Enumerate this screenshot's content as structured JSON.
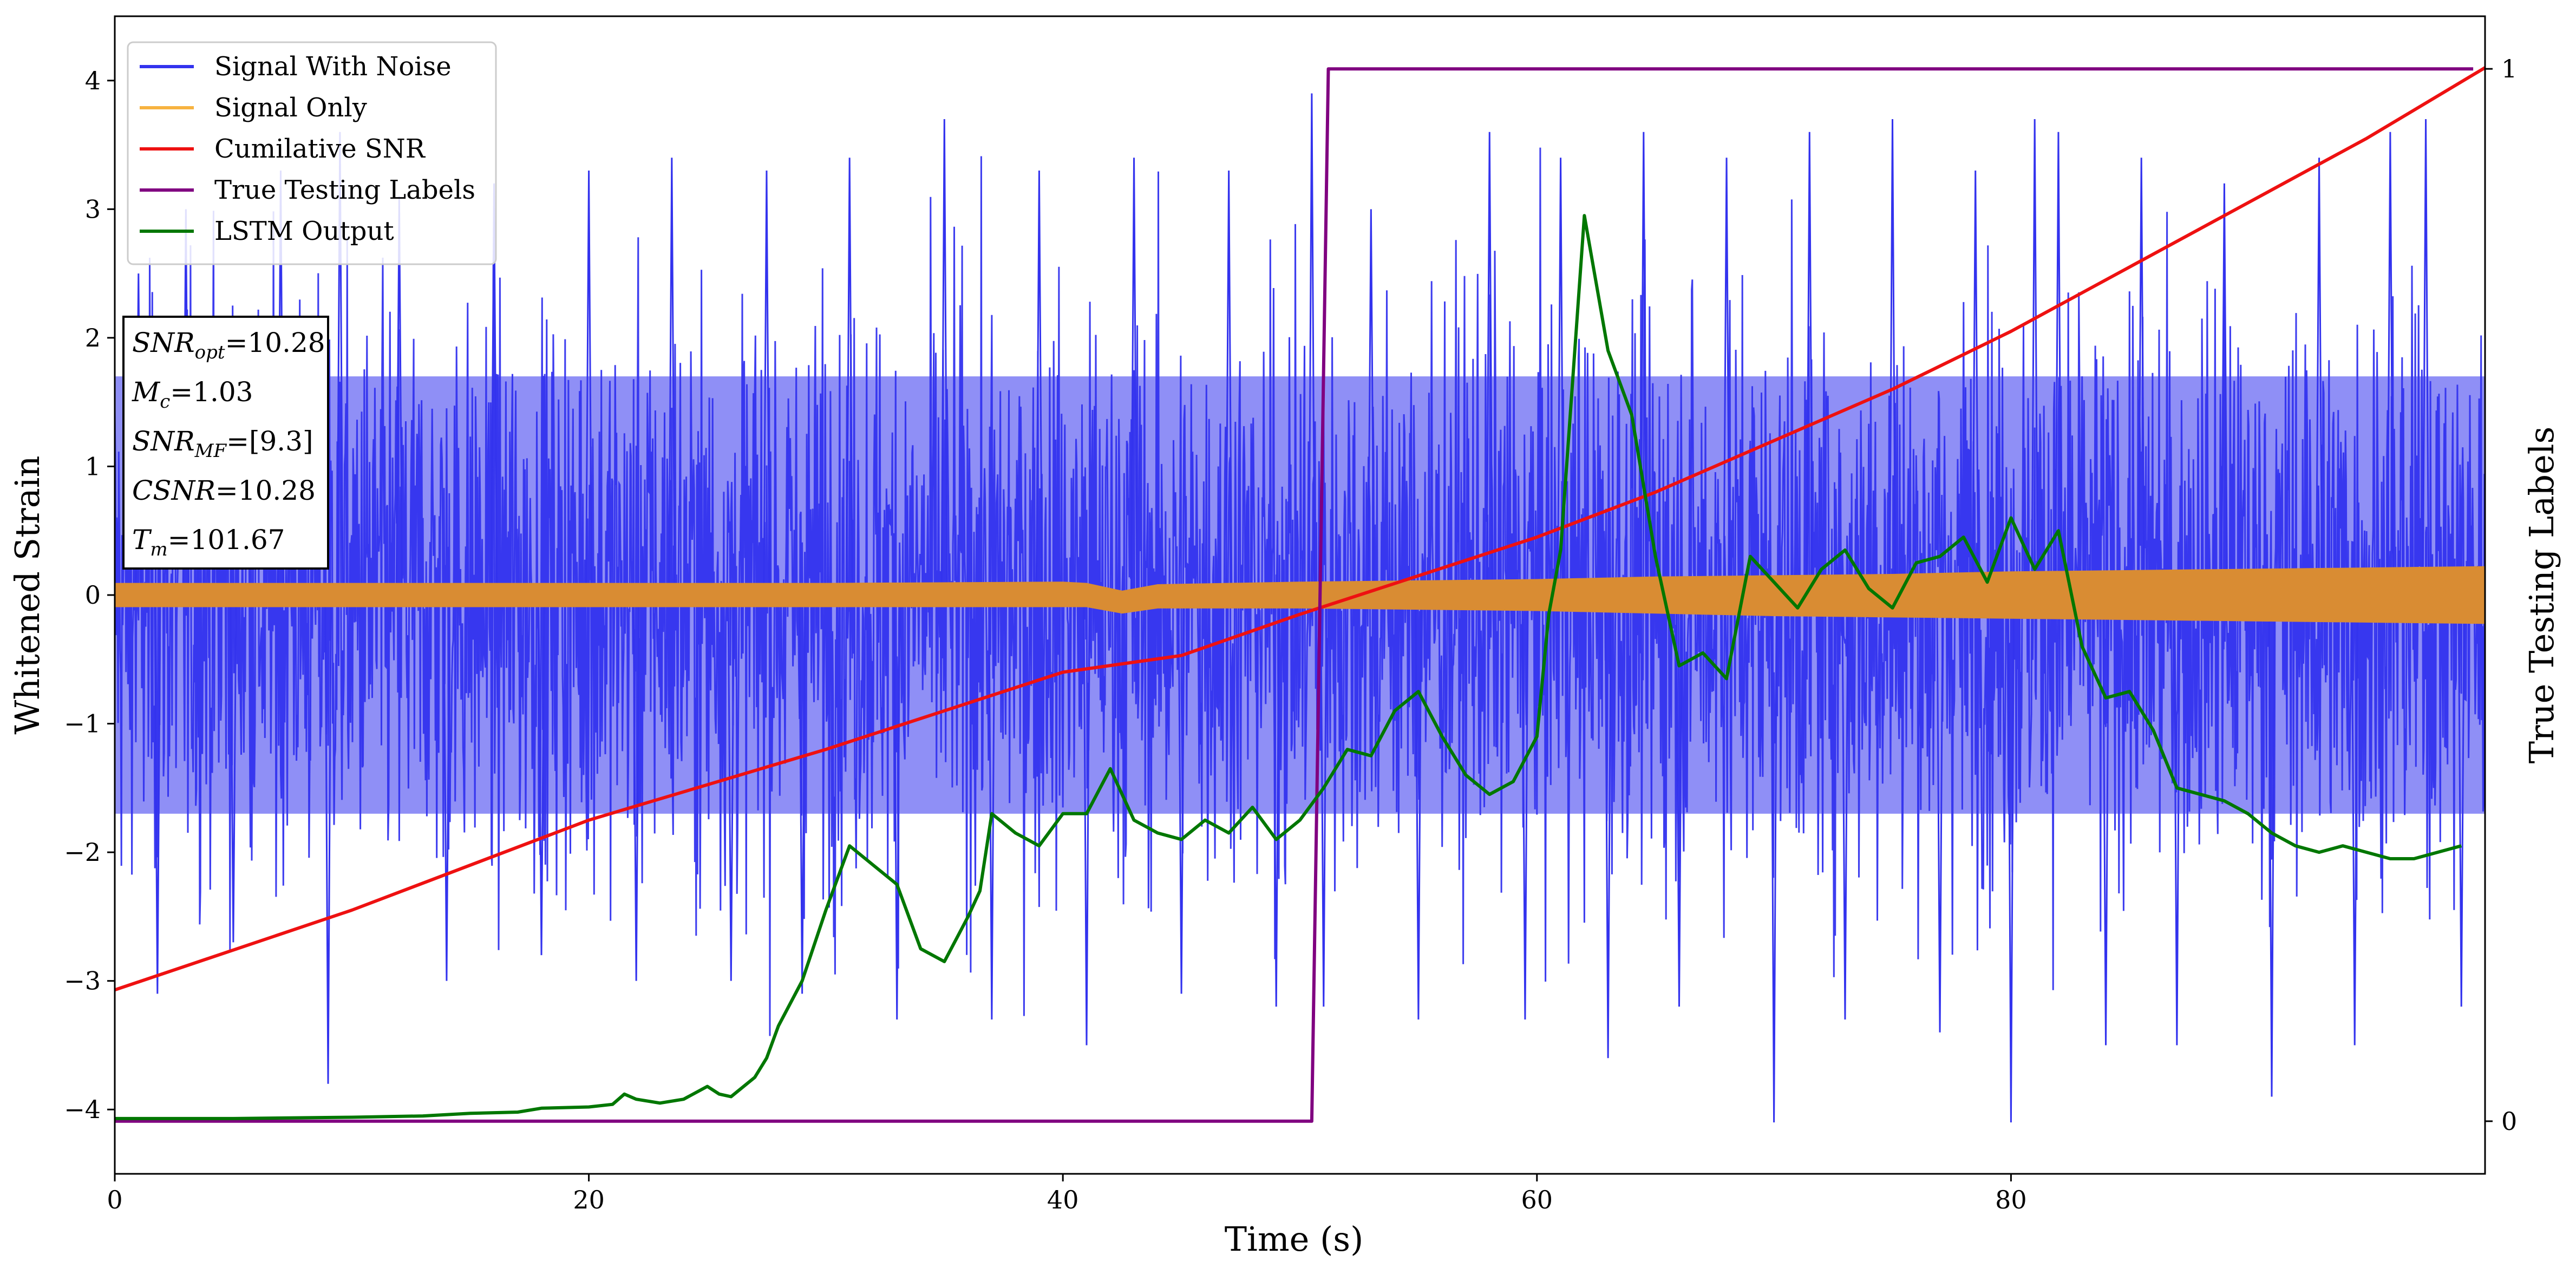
{
  "chart_data": {
    "type": "line",
    "xlabel": "Time (s)",
    "ylabel": "Whitened Strain",
    "ylabel_right": "True Testing Labels",
    "xlim": [
      0,
      100
    ],
    "ylim": [
      -4.5,
      4.5
    ],
    "ylim_right": [
      -0.05,
      1.05
    ],
    "x_ticks": [
      0,
      20,
      40,
      60,
      80
    ],
    "y_ticks": [
      -4,
      -3,
      -2,
      -1,
      0,
      1,
      2,
      3,
      4
    ],
    "y_ticks_right": [
      0,
      1
    ],
    "grid": false,
    "legend_position": "top-left",
    "legend": [
      {
        "label": "Signal With Noise",
        "color": "#3333ee"
      },
      {
        "label": "Signal Only",
        "color": "#f7b340"
      },
      {
        "label": "Cumilative SNR",
        "color": "#ee1111"
      },
      {
        "label": "True Testing Labels",
        "color": "#800080"
      },
      {
        "label": "LSTM Output",
        "color": "#007700"
      }
    ],
    "annotation": [
      {
        "var": "SNR",
        "sub": "opt",
        "value": "=10.28"
      },
      {
        "var": "M",
        "sub": "c",
        "value": "=1.03"
      },
      {
        "var": "SNR",
        "sub": "MF",
        "value": "=[9.3]"
      },
      {
        "var": "CSNR",
        "sub": "",
        "value": "=10.28"
      },
      {
        "var": "T",
        "sub": "m",
        "value": "=101.67"
      }
    ],
    "series": [
      {
        "name": "Signal With Noise",
        "axis": "left",
        "color": "#3333ee",
        "description_kind": "noise",
        "envelope": {
          "x": [
            0,
            10,
            20,
            30,
            40,
            50,
            60,
            70,
            80,
            90,
            100
          ],
          "band_low": [
            -1.7,
            -1.7,
            -1.7,
            -1.7,
            -1.7,
            -1.7,
            -1.7,
            -1.7,
            -1.7,
            -1.7,
            -1.7
          ],
          "band_high": [
            1.7,
            1.7,
            1.7,
            1.7,
            1.7,
            1.7,
            1.7,
            1.7,
            1.7,
            1.7,
            1.7
          ]
        },
        "spikes": [
          [
            1,
            2.5
          ],
          [
            1.8,
            -3.1
          ],
          [
            3,
            3.0
          ],
          [
            5,
            -2.7
          ],
          [
            7,
            3.3
          ],
          [
            9,
            -3.8
          ],
          [
            9.5,
            3.6
          ],
          [
            12,
            3.1
          ],
          [
            14,
            -3.0
          ],
          [
            16,
            3.2
          ],
          [
            18,
            -2.8
          ],
          [
            20,
            3.3
          ],
          [
            22,
            -3.0
          ],
          [
            23.5,
            3.4
          ],
          [
            26,
            -3.0
          ],
          [
            27.5,
            3.3
          ],
          [
            29,
            -3.1
          ],
          [
            31,
            3.4
          ],
          [
            33,
            -3.3
          ],
          [
            35,
            3.7
          ],
          [
            37,
            -3.3
          ],
          [
            39,
            3.3
          ],
          [
            41,
            -3.5
          ],
          [
            43,
            3.4
          ],
          [
            45,
            -3.1
          ],
          [
            47,
            3.3
          ],
          [
            49,
            -3.2
          ],
          [
            50.5,
            3.9
          ],
          [
            51,
            -3.2
          ],
          [
            53,
            3.0
          ],
          [
            55,
            -3.3
          ],
          [
            58,
            3.6
          ],
          [
            59.5,
            -3.3
          ],
          [
            61,
            3.4
          ],
          [
            63,
            -3.6
          ],
          [
            64.5,
            3.6
          ],
          [
            66,
            -3.2
          ],
          [
            68,
            3.4
          ],
          [
            70,
            -4.1
          ],
          [
            71.5,
            3.6
          ],
          [
            73,
            -3.3
          ],
          [
            75,
            3.7
          ],
          [
            77,
            -3.4
          ],
          [
            78.5,
            3.3
          ],
          [
            80,
            -4.1
          ],
          [
            81,
            3.7
          ],
          [
            82,
            3.6
          ],
          [
            84,
            -3.5
          ],
          [
            85.5,
            3.4
          ],
          [
            87,
            -3.5
          ],
          [
            89,
            3.2
          ],
          [
            91,
            -3.9
          ],
          [
            93,
            3.4
          ],
          [
            94.5,
            -3.5
          ],
          [
            96,
            3.6
          ],
          [
            97.5,
            3.7
          ],
          [
            99,
            -3.2
          ]
        ]
      },
      {
        "name": "Signal Only",
        "axis": "left",
        "color": "#d98c33",
        "envelope": {
          "x": [
            0,
            10,
            20,
            30,
            40,
            41,
            42.5,
            44,
            50,
            55,
            60,
            65,
            70,
            75,
            80,
            90,
            100
          ],
          "band_low": [
            -0.09,
            -0.09,
            -0.09,
            -0.09,
            -0.09,
            -0.09,
            -0.14,
            -0.1,
            -0.1,
            -0.11,
            -0.12,
            -0.14,
            -0.16,
            -0.17,
            -0.18,
            -0.2,
            -0.22
          ],
          "band_high": [
            0.09,
            0.09,
            0.09,
            0.09,
            0.1,
            0.09,
            0.03,
            0.08,
            0.1,
            0.11,
            0.12,
            0.14,
            0.15,
            0.16,
            0.18,
            0.2,
            0.22
          ]
        }
      },
      {
        "name": "Cumilative SNR",
        "axis": "left",
        "color": "#ee1111",
        "x": [
          0,
          10,
          20,
          30,
          40,
          45,
          50,
          55,
          60,
          65,
          70,
          75,
          80,
          85,
          90,
          95,
          100
        ],
        "y": [
          -3.07,
          -2.45,
          -1.75,
          -1.2,
          -0.6,
          -0.47,
          -0.15,
          0.15,
          0.45,
          0.8,
          1.2,
          1.6,
          2.05,
          2.55,
          3.05,
          3.55,
          4.1
        ]
      },
      {
        "name": "True Testing Labels",
        "axis": "right",
        "color": "#800080",
        "x": [
          0,
          50.5,
          51.2,
          99.5
        ],
        "y": [
          0,
          0,
          1,
          1
        ]
      },
      {
        "name": "LSTM Output",
        "axis": "left",
        "color": "#007700",
        "x": [
          0,
          5,
          10,
          13,
          15,
          17,
          18,
          20,
          21,
          21.5,
          22,
          23,
          24,
          25,
          25.5,
          26,
          27,
          27.5,
          28,
          29,
          30,
          31,
          32,
          33,
          34,
          35,
          36,
          36.5,
          37,
          38,
          39,
          40,
          41,
          42,
          43,
          44,
          45,
          46,
          47,
          48,
          49,
          50,
          51,
          52,
          53,
          54,
          55,
          56,
          57,
          58,
          59,
          60,
          60.5,
          61,
          62,
          63,
          64,
          65,
          66,
          67,
          68,
          69,
          70,
          71,
          72,
          73,
          74,
          75,
          76,
          77,
          78,
          79,
          80,
          81,
          82,
          83,
          84,
          85,
          86,
          87,
          88,
          89,
          90,
          91,
          92,
          93,
          94,
          95,
          96,
          97,
          98,
          99
        ],
        "y": [
          -4.07,
          -4.07,
          -4.06,
          -4.05,
          -4.03,
          -4.02,
          -3.99,
          -3.98,
          -3.96,
          -3.88,
          -3.92,
          -3.95,
          -3.92,
          -3.82,
          -3.88,
          -3.9,
          -3.75,
          -3.6,
          -3.35,
          -3.0,
          -2.45,
          -1.95,
          -2.1,
          -2.25,
          -2.75,
          -2.85,
          -2.5,
          -2.3,
          -1.7,
          -1.85,
          -1.95,
          -1.7,
          -1.7,
          -1.35,
          -1.75,
          -1.85,
          -1.9,
          -1.75,
          -1.85,
          -1.65,
          -1.9,
          -1.75,
          -1.5,
          -1.2,
          -1.25,
          -0.9,
          -0.75,
          -1.1,
          -1.4,
          -1.55,
          -1.45,
          -1.1,
          -0.15,
          0.35,
          2.95,
          1.9,
          1.4,
          0.3,
          -0.55,
          -0.45,
          -0.65,
          0.3,
          0.1,
          -0.1,
          0.2,
          0.35,
          0.05,
          -0.1,
          0.25,
          0.3,
          0.45,
          0.1,
          0.6,
          0.2,
          0.5,
          -0.4,
          -0.8,
          -0.75,
          -1.05,
          -1.5,
          -1.55,
          -1.6,
          -1.7,
          -1.85,
          -1.95,
          -2.0,
          -1.95,
          -2.0,
          -2.05,
          -2.05,
          -2.0,
          -1.95
        ]
      }
    ]
  }
}
